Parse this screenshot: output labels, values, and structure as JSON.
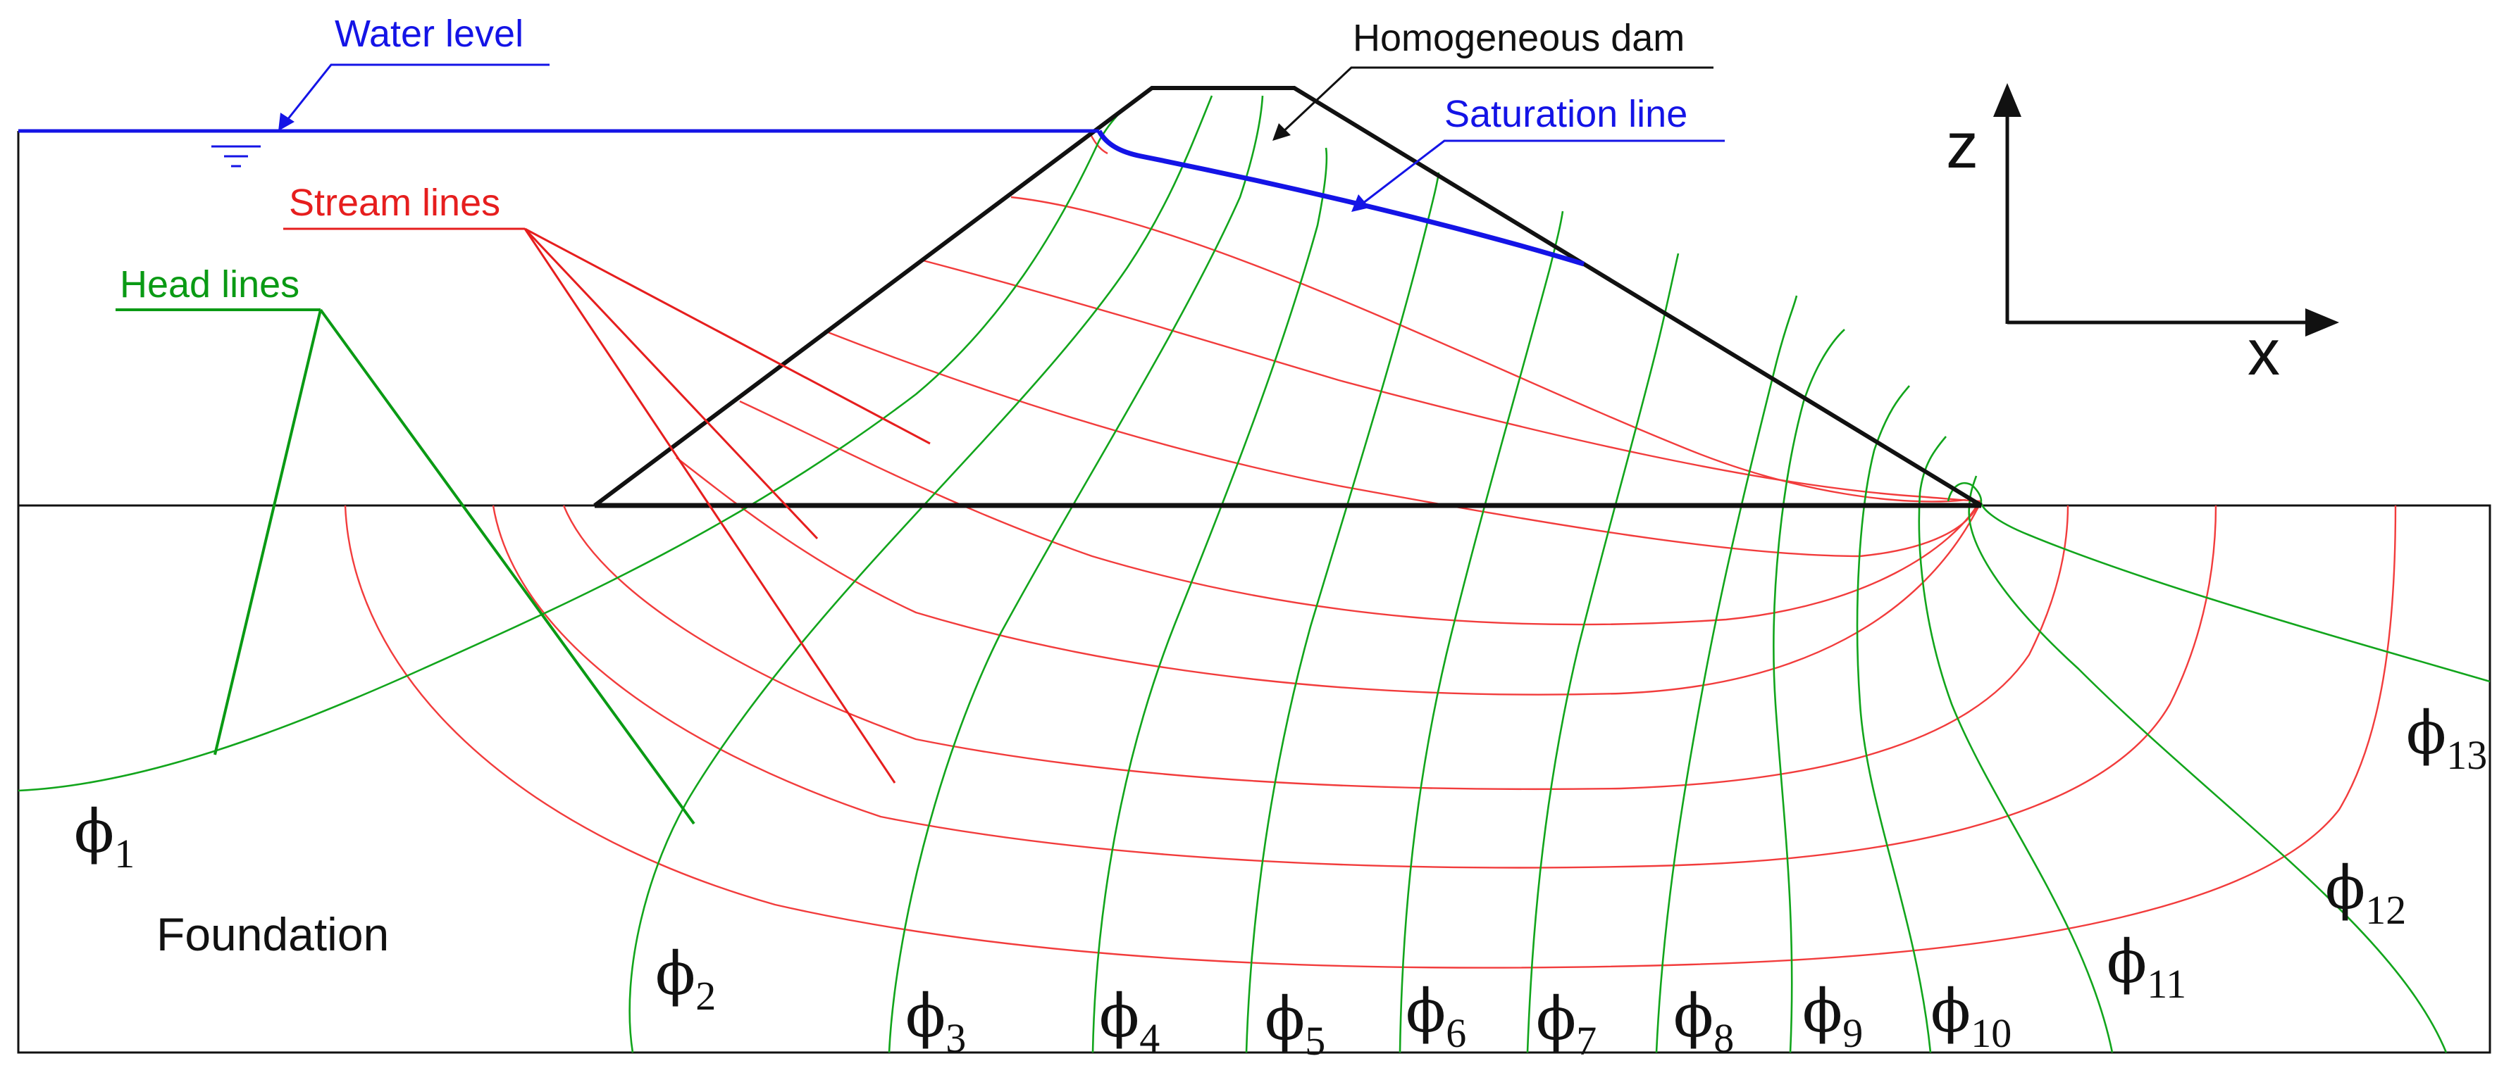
{
  "labels": {
    "water_level": "Water level",
    "homogeneous_dam": "Homogeneous dam",
    "saturation_line": "Saturation line",
    "stream_lines": "Stream lines",
    "head_lines": "Head lines",
    "foundation": "Foundation",
    "axis_z": "z",
    "axis_x": "x"
  },
  "head_lines": {
    "symbol": "ϕ",
    "subscripts": [
      "1",
      "2",
      "3",
      "4",
      "5",
      "6",
      "7",
      "8",
      "9",
      "10",
      "11",
      "12",
      "13"
    ]
  },
  "colors": {
    "water_level": "#1414e6",
    "saturation_line": "#1414e6",
    "stream_lines": "#f23c3c",
    "head_lines": "#12a51c",
    "outline": "#111111"
  }
}
